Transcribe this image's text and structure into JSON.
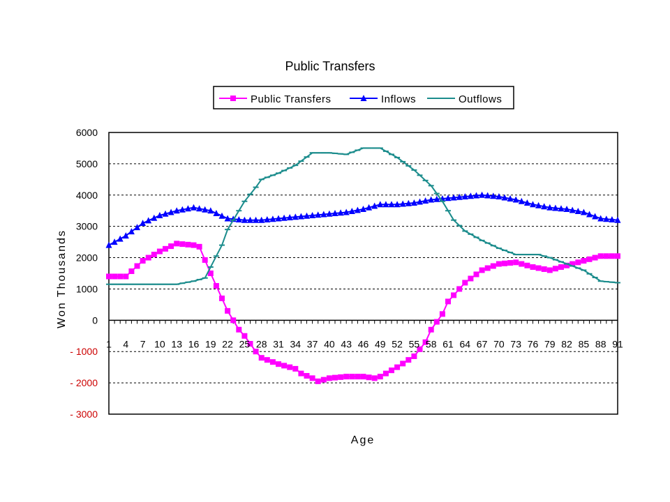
{
  "chart_data": {
    "type": "line",
    "title": "Public Transfers",
    "xlabel": "Age",
    "ylabel": "Won Thousands",
    "ylim": [
      -3000,
      6000
    ],
    "yticks": [
      6000,
      5000,
      4000,
      3000,
      2000,
      1000,
      0,
      -1000,
      -2000,
      -3000
    ],
    "ytick_labels": [
      "6000",
      "5000",
      "4000",
      "3000",
      "2000",
      "1000",
      "0",
      "- 1000",
      "- 2000",
      "- 3000"
    ],
    "xtick_labels": [
      "1",
      "4",
      "7",
      "10",
      "13",
      "16",
      "19",
      "22",
      "25",
      "28",
      "31",
      "34",
      "37",
      "40",
      "43",
      "46",
      "49",
      "52",
      "55",
      "58",
      "61",
      "64",
      "67",
      "70",
      "73",
      "76",
      "79",
      "82",
      "85",
      "88",
      "91"
    ],
    "grid": "horizontal-dashed",
    "legend_position": "top",
    "x_range": [
      1,
      91
    ],
    "series": [
      {
        "name": "Public Transfers",
        "color": "#ff00ff",
        "marker": "square",
        "points": [
          [
            1,
            1400
          ],
          [
            4,
            1400
          ],
          [
            7,
            1900
          ],
          [
            10,
            2200
          ],
          [
            13,
            2450
          ],
          [
            16,
            2400
          ],
          [
            17,
            2350
          ],
          [
            19,
            1500
          ],
          [
            21,
            700
          ],
          [
            22,
            300
          ],
          [
            24,
            -300
          ],
          [
            25,
            -500
          ],
          [
            27,
            -1000
          ],
          [
            28,
            -1200
          ],
          [
            31,
            -1400
          ],
          [
            34,
            -1550
          ],
          [
            35,
            -1700
          ],
          [
            37,
            -1850
          ],
          [
            38,
            -1950
          ],
          [
            40,
            -1850
          ],
          [
            43,
            -1800
          ],
          [
            46,
            -1800
          ],
          [
            48,
            -1850
          ],
          [
            49,
            -1800
          ],
          [
            52,
            -1500
          ],
          [
            55,
            -1150
          ],
          [
            57,
            -700
          ],
          [
            58,
            -300
          ],
          [
            60,
            200
          ],
          [
            61,
            600
          ],
          [
            64,
            1200
          ],
          [
            67,
            1600
          ],
          [
            70,
            1800
          ],
          [
            73,
            1850
          ],
          [
            76,
            1700
          ],
          [
            79,
            1600
          ],
          [
            82,
            1750
          ],
          [
            85,
            1900
          ],
          [
            88,
            2050
          ],
          [
            91,
            2050
          ]
        ]
      },
      {
        "name": "Inflows",
        "color": "#0000ff",
        "marker": "triangle",
        "points": [
          [
            1,
            2400
          ],
          [
            4,
            2700
          ],
          [
            7,
            3100
          ],
          [
            10,
            3350
          ],
          [
            13,
            3500
          ],
          [
            16,
            3600
          ],
          [
            19,
            3500
          ],
          [
            22,
            3250
          ],
          [
            25,
            3200
          ],
          [
            28,
            3200
          ],
          [
            31,
            3250
          ],
          [
            34,
            3300
          ],
          [
            37,
            3350
          ],
          [
            40,
            3400
          ],
          [
            43,
            3450
          ],
          [
            46,
            3550
          ],
          [
            49,
            3700
          ],
          [
            52,
            3700
          ],
          [
            55,
            3750
          ],
          [
            58,
            3850
          ],
          [
            61,
            3900
          ],
          [
            64,
            3950
          ],
          [
            67,
            4000
          ],
          [
            70,
            3950
          ],
          [
            73,
            3850
          ],
          [
            76,
            3700
          ],
          [
            79,
            3600
          ],
          [
            82,
            3550
          ],
          [
            85,
            3450
          ],
          [
            88,
            3250
          ],
          [
            91,
            3200
          ]
        ]
      },
      {
        "name": "Outflows",
        "color": "#1b8c8c",
        "marker": "dash",
        "points": [
          [
            1,
            1150
          ],
          [
            4,
            1150
          ],
          [
            7,
            1150
          ],
          [
            10,
            1150
          ],
          [
            13,
            1150
          ],
          [
            16,
            1250
          ],
          [
            18,
            1350
          ],
          [
            19,
            1700
          ],
          [
            21,
            2400
          ],
          [
            22,
            2900
          ],
          [
            24,
            3500
          ],
          [
            25,
            3800
          ],
          [
            27,
            4250
          ],
          [
            28,
            4500
          ],
          [
            31,
            4700
          ],
          [
            34,
            4950
          ],
          [
            37,
            5350
          ],
          [
            40,
            5350
          ],
          [
            43,
            5300
          ],
          [
            46,
            5500
          ],
          [
            49,
            5500
          ],
          [
            52,
            5200
          ],
          [
            55,
            4800
          ],
          [
            58,
            4300
          ],
          [
            60,
            3800
          ],
          [
            61,
            3500
          ],
          [
            62,
            3200
          ],
          [
            64,
            2850
          ],
          [
            67,
            2550
          ],
          [
            70,
            2300
          ],
          [
            73,
            2100
          ],
          [
            76,
            2100
          ],
          [
            77,
            2100
          ],
          [
            79,
            2000
          ],
          [
            82,
            1800
          ],
          [
            85,
            1600
          ],
          [
            88,
            1250
          ],
          [
            91,
            1200
          ]
        ]
      }
    ]
  }
}
